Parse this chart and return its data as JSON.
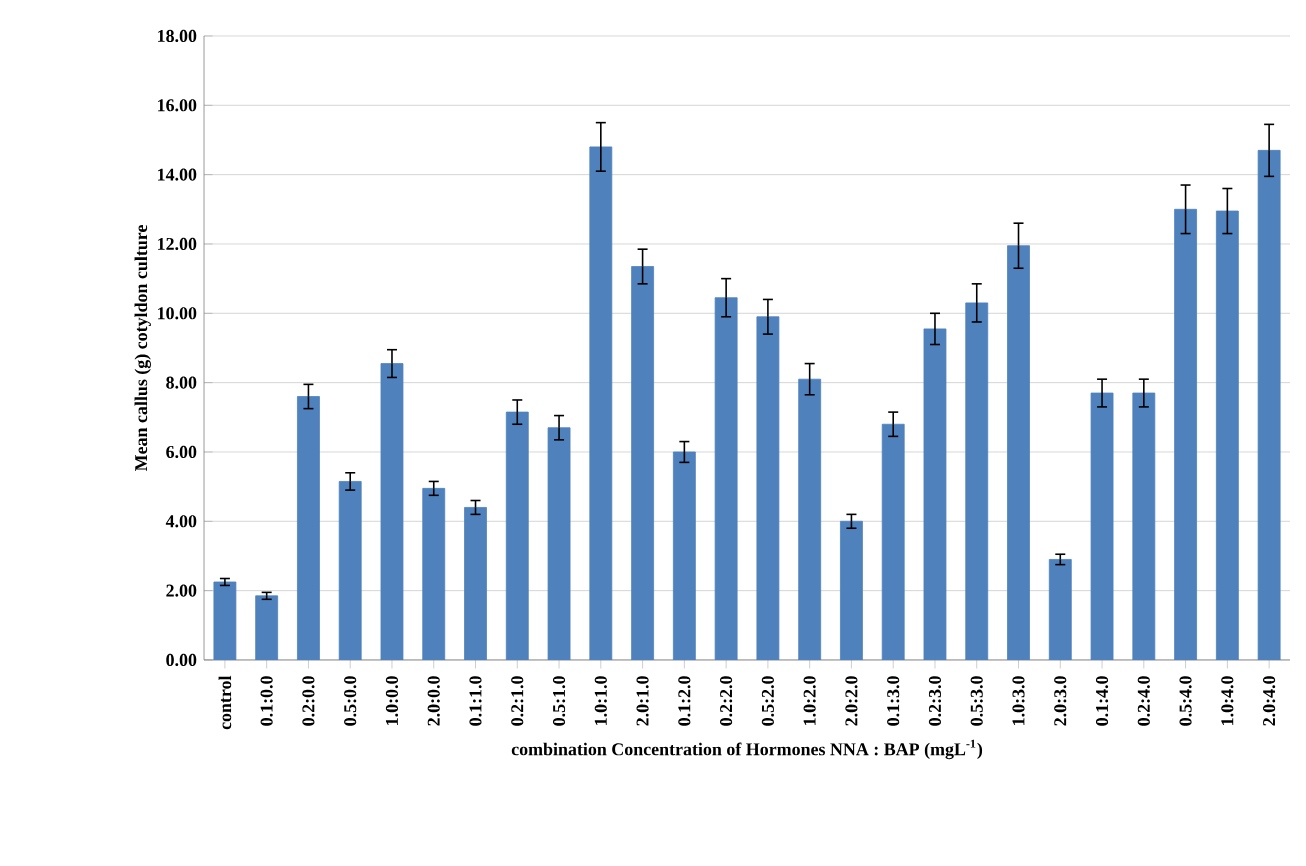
{
  "chart_data": {
    "type": "bar",
    "xlabel": "combination Concentration of Hormones  NNA : BAP (mgL$^{-1}$)",
    "ylabel": "Mean callus (g) cotyldon culture",
    "categories": [
      "control",
      "0.1:0.0",
      "0.2:0.0",
      "0.5:0.0",
      "1.0:0.0",
      "2.0:0.0",
      "0.1:1.0",
      "0.2:1.0",
      "0.5:1.0",
      "1.0:1.0",
      "2.0:1.0",
      "0.1:2.0",
      "0.2:2.0",
      "0.5:2.0",
      "1.0:2.0",
      "2.0:2.0",
      "0.1:3.0",
      "0.2:3.0",
      "0.5:3.0",
      "1.0:3.0",
      "2.0:3.0",
      "0.1:4.0",
      "0.2:4.0",
      "0.5:4.0",
      "1.0:4.0",
      "2.0:4.0"
    ],
    "values": [
      2.25,
      1.85,
      7.6,
      5.15,
      8.55,
      4.95,
      4.4,
      7.15,
      6.7,
      14.8,
      11.35,
      6.0,
      10.45,
      9.9,
      8.1,
      4.0,
      6.8,
      9.55,
      10.3,
      11.95,
      2.9,
      7.7,
      7.7,
      13.0,
      12.95,
      14.7
    ],
    "errors": [
      0.1,
      0.1,
      0.35,
      0.25,
      0.4,
      0.2,
      0.2,
      0.35,
      0.35,
      0.7,
      0.5,
      0.3,
      0.55,
      0.5,
      0.45,
      0.2,
      0.35,
      0.45,
      0.55,
      0.65,
      0.15,
      0.4,
      0.4,
      0.7,
      0.65,
      0.75
    ],
    "color": "#4f81bd",
    "ylim": [
      0,
      18
    ],
    "yticks": [
      {
        "value": 0,
        "label": "0.00"
      },
      {
        "value": 2,
        "label": "2.00"
      },
      {
        "value": 4,
        "label": "4.00"
      },
      {
        "value": 6,
        "label": "6.00"
      },
      {
        "value": 8,
        "label": "8.00"
      },
      {
        "value": 10,
        "label": "10.00"
      },
      {
        "value": 12,
        "label": "12.00"
      },
      {
        "value": 14,
        "label": "14.00"
      },
      {
        "value": 16,
        "label": "16.00"
      },
      {
        "value": 18,
        "label": "18.00"
      }
    ],
    "grid": "y"
  }
}
